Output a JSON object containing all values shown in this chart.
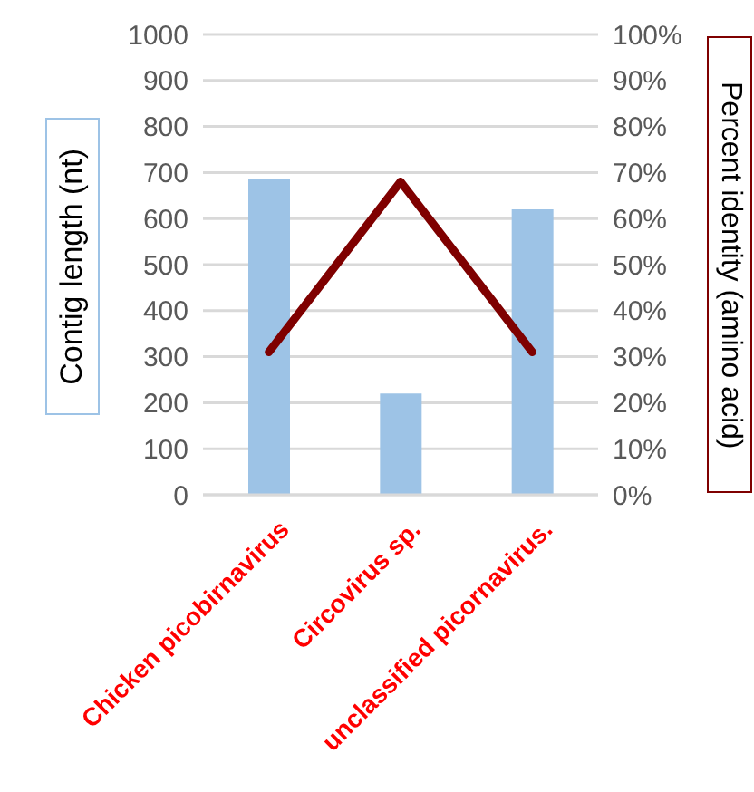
{
  "chart_data": {
    "type": "bar",
    "ylabel": "Contig length (nt)",
    "y2label": "Percent identity (amino acid)",
    "categories": [
      "Chicken picobirnavirus",
      "Circovirus sp.",
      "unclassified picornavirus."
    ],
    "series": [
      {
        "color": "#9dc3e6",
        "values": [
          685,
          220,
          620
        ]
      },
      {
        "type": "line",
        "axis": "y2",
        "color": "#7f0000",
        "values": [
          31,
          68,
          31
        ],
        "marker": "none",
        "line_style": "solid"
      }
    ],
    "ylim": [
      0,
      1000
    ],
    "yticks": [
      0,
      100,
      200,
      300,
      400,
      500,
      600,
      700,
      800,
      900,
      1000
    ],
    "y2lim": [
      0,
      100
    ],
    "y2ticks": [
      {
        "value": 0,
        "label": "0%"
      },
      {
        "value": 10,
        "label": "10%"
      },
      {
        "value": 20,
        "label": "20%"
      },
      {
        "value": 30,
        "label": "30%"
      },
      {
        "value": 40,
        "label": "40%"
      },
      {
        "value": 50,
        "label": "50%"
      },
      {
        "value": 60,
        "label": "60%"
      },
      {
        "value": 70,
        "label": "70%"
      },
      {
        "value": 80,
        "label": "80%"
      },
      {
        "value": 90,
        "label": "90%"
      },
      {
        "value": 100,
        "label": "100%"
      }
    ],
    "grid": "y"
  }
}
